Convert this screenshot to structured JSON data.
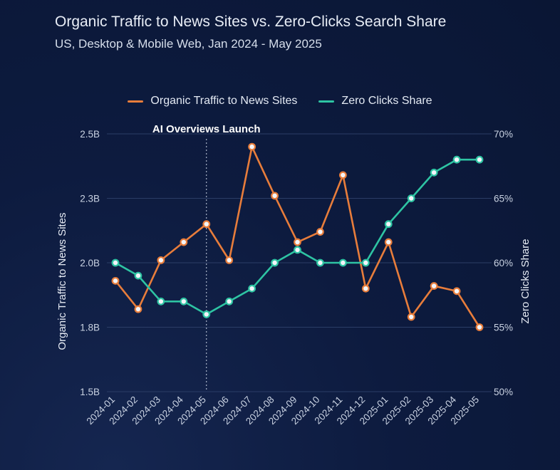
{
  "title": "Organic Traffic to News Sites vs. Zero-Clicks Search Share",
  "subtitle": "US, Desktop & Mobile Web, Jan 2024 - May 2025",
  "colors": {
    "organic": "#e87d3b",
    "zero": "#2ec4a3",
    "background": "#0d1b3f"
  },
  "chart_data": {
    "type": "line",
    "title": "Organic Traffic to News Sites vs. Zero-Clicks Search Share",
    "subtitle": "US, Desktop & Mobile Web, Jan 2024 - May 2025",
    "x": [
      "2024-01",
      "2024-02",
      "2024-03",
      "2024-04",
      "2024-05",
      "2024-06",
      "2024-07",
      "2024-08",
      "2024-09",
      "2024-10",
      "2024-11",
      "2024-12",
      "2025-01",
      "2025-02",
      "2025-03",
      "2025-04",
      "2025-05"
    ],
    "series": [
      {
        "name": "Organic Traffic to News Sites",
        "axis": "left",
        "color": "#e87d3b",
        "values": [
          1.93,
          1.82,
          2.01,
          2.08,
          2.15,
          2.01,
          2.45,
          2.26,
          2.08,
          2.12,
          2.34,
          1.9,
          2.08,
          1.79,
          1.91,
          1.89,
          1.75
        ]
      },
      {
        "name": "Zero Clicks Share",
        "axis": "right",
        "color": "#2ec4a3",
        "values": [
          60,
          59,
          57,
          57,
          56,
          57,
          58,
          60,
          61,
          60,
          60,
          60,
          63,
          65,
          67,
          68,
          68
        ]
      }
    ],
    "ylabel_left": "Organic Traffic to News Sites",
    "ylabel_right": "Zero Clicks Share",
    "yticks_left": [
      "2.5B",
      "2.3B",
      "2.0B",
      "1.8B",
      "1.5B"
    ],
    "yticks_right": [
      "70%",
      "65%",
      "60%",
      "55%",
      "50%"
    ],
    "ylim_left": [
      1.5,
      2.5
    ],
    "ylim_right": [
      50,
      70
    ],
    "annotation": {
      "text": "AI Overviews Launch",
      "x": "2024-05"
    },
    "grid": "horizontal",
    "legend": "top-center"
  }
}
